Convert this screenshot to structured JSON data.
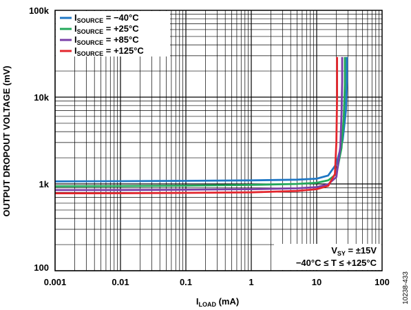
{
  "chart_data": {
    "type": "line",
    "x_scale": "log",
    "y_scale": "log",
    "xlim": [
      0.001,
      100
    ],
    "ylim": [
      100,
      100000
    ],
    "grid": true,
    "legend_placement": "top-left",
    "xlabel": {
      "main": "I",
      "sub": "LOAD",
      "suffix": " (mA)"
    },
    "ylabel": "OUTPUT DROPOUT VOLTAGE (mV)",
    "x_ticks": [
      {
        "value": 0.001,
        "label": "0.001"
      },
      {
        "value": 0.01,
        "label": "0.01"
      },
      {
        "value": 0.1,
        "label": "0.1"
      },
      {
        "value": 1,
        "label": "1"
      },
      {
        "value": 10,
        "label": "10"
      },
      {
        "value": 100,
        "label": "100"
      }
    ],
    "y_ticks": [
      {
        "value": 100,
        "label": "100"
      },
      {
        "value": 1000,
        "label": "1k"
      },
      {
        "value": 10000,
        "label": "10k"
      },
      {
        "value": 100000,
        "label": "100k"
      }
    ],
    "series": [
      {
        "name": "I SOURCE = −40°C",
        "color": "#1f77c4",
        "x": [
          0.001,
          0.01,
          0.1,
          1,
          5,
          10,
          15,
          20,
          25,
          28,
          29,
          29
        ],
        "y": [
          1070,
          1075,
          1085,
          1100,
          1120,
          1150,
          1250,
          1700,
          3200,
          7000,
          15000,
          29000
        ]
      },
      {
        "name": "I SOURCE = +25°C",
        "color": "#22a85a",
        "x": [
          0.001,
          0.01,
          0.1,
          1,
          5,
          10,
          15,
          20,
          24,
          26,
          27,
          27
        ],
        "y": [
          940,
          945,
          955,
          975,
          1000,
          1030,
          1100,
          1300,
          2600,
          6000,
          14000,
          29000
        ]
      },
      {
        "name": "I SOURCE = +85°C",
        "color": "#7a3fa8",
        "x": [
          0.001,
          0.01,
          0.1,
          1,
          5,
          10,
          15,
          20,
          23,
          24,
          24.5,
          24.5
        ],
        "y": [
          850,
          852,
          858,
          870,
          890,
          920,
          990,
          1200,
          2700,
          6500,
          15000,
          29000
        ]
      },
      {
        "name": "I SOURCE = +125°C",
        "color": "#e3262d",
        "x": [
          0.001,
          0.01,
          0.1,
          1,
          5,
          10,
          15,
          19,
          20,
          20.5,
          20.5
        ],
        "y": [
          780,
          782,
          788,
          800,
          830,
          870,
          950,
          1300,
          3000,
          10000,
          29000
        ]
      }
    ],
    "legend": [
      {
        "main": "I",
        "sub": "SOURCE",
        "rest": " = −40°C",
        "color": "#1f77c4"
      },
      {
        "main": "I",
        "sub": "SOURCE",
        "rest": " = +25°C",
        "color": "#22a85a"
      },
      {
        "main": "I",
        "sub": "SOURCE",
        "rest": " = +85°C",
        "color": "#7a3fa8"
      },
      {
        "main": "I",
        "sub": "SOURCE",
        "rest": " = +125°C",
        "color": "#e3262d"
      }
    ],
    "annotations": [
      {
        "main": "V",
        "sub": "SY",
        "rest": " = ±15V"
      },
      {
        "text": "−40°C ≤ T ≤ +125°C"
      }
    ]
  },
  "figure_id": "10238-433"
}
